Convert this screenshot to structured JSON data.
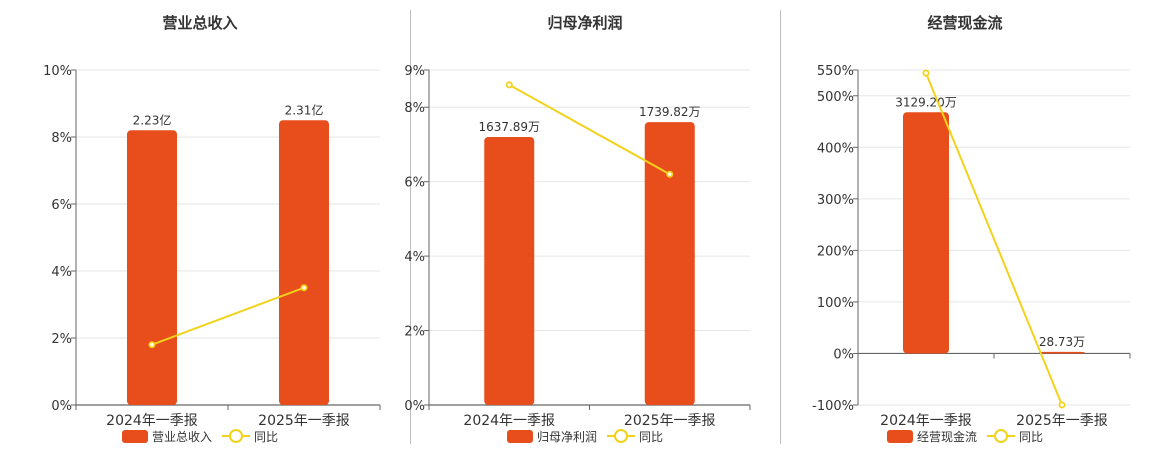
{
  "colors": {
    "bar": "#E84D1C",
    "line": "#F2D21B",
    "grid": "#e6e6e6",
    "axis": "#666666"
  },
  "chart_data": [
    {
      "type": "bar",
      "title": "营业总收入",
      "categories": [
        "2024年一季报",
        "2025年一季报"
      ],
      "series": [
        {
          "name": "营业总收入",
          "kind": "bar",
          "values": [
            8.2,
            8.5
          ],
          "labels": [
            "2.23亿",
            "2.31亿"
          ]
        },
        {
          "name": "同比",
          "kind": "line",
          "values": [
            1.8,
            3.5
          ]
        }
      ],
      "ylim": [
        0,
        10
      ],
      "yticks": [
        "0%",
        "2%",
        "4%",
        "6%",
        "8%",
        "10%"
      ],
      "grid": true,
      "legend_position": "bottom"
    },
    {
      "type": "bar",
      "title": "归母净利润",
      "categories": [
        "2024年一季报",
        "2025年一季报"
      ],
      "series": [
        {
          "name": "归母净利润",
          "kind": "bar",
          "values": [
            7.2,
            7.6
          ],
          "labels": [
            "1637.89万",
            "1739.82万"
          ]
        },
        {
          "name": "同比",
          "kind": "line",
          "values": [
            8.6,
            6.2
          ]
        }
      ],
      "ylim": [
        0,
        9
      ],
      "yticks": [
        "0%",
        "2%",
        "4%",
        "6%",
        "8%",
        "9%"
      ],
      "grid": true,
      "legend_position": "bottom"
    },
    {
      "type": "bar",
      "title": "经营现金流",
      "categories": [
        "2024年一季报",
        "2025年一季报"
      ],
      "series": [
        {
          "name": "经营现金流",
          "kind": "bar",
          "values": [
            468,
            3
          ],
          "labels": [
            "3129.20万",
            "28.73万"
          ]
        },
        {
          "name": "同比",
          "kind": "line",
          "values": [
            544,
            -100
          ]
        }
      ],
      "ylim": [
        -100,
        550
      ],
      "yticks": [
        "-100%",
        "0%",
        "100%",
        "200%",
        "300%",
        "400%",
        "500%",
        "550%"
      ],
      "grid": true,
      "legend_position": "bottom"
    }
  ]
}
